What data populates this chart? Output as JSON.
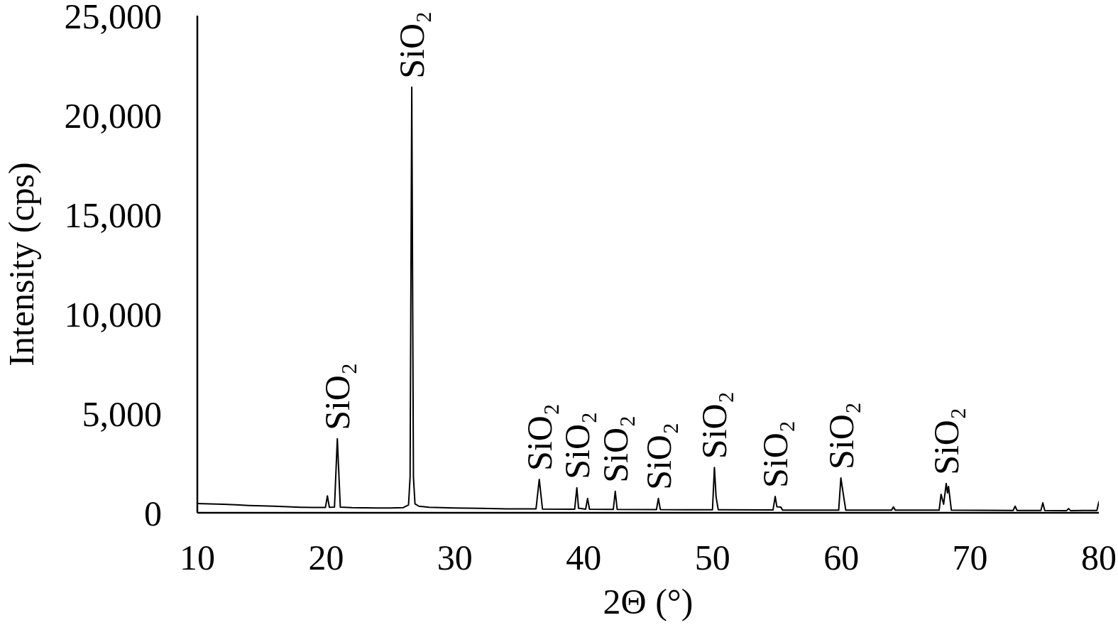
{
  "chart_data": {
    "type": "line",
    "xlabel": "2Θ (°)",
    "ylabel": "Intensity (cps)",
    "x": [
      10,
      11,
      12,
      13,
      14,
      15,
      16,
      17,
      18,
      19,
      19.95,
      20.1,
      20.25,
      20.65,
      20.87,
      21.1,
      22,
      23,
      24,
      25,
      26,
      26.4,
      26.52,
      26.65,
      26.78,
      26.9,
      27.2,
      28,
      30,
      32,
      34,
      36.3,
      36.55,
      36.8,
      39.3,
      39.47,
      39.6,
      40.15,
      40.3,
      40.45,
      42.3,
      42.45,
      42.6,
      45.65,
      45.8,
      45.95,
      48,
      50,
      50.15,
      50.28,
      50.45,
      54.7,
      54.87,
      55,
      55.3,
      55.45,
      59.8,
      59.97,
      60.15,
      60.35,
      63.9,
      64.05,
      64.2,
      67.6,
      67.75,
      67.95,
      68.15,
      68.25,
      68.33,
      68.55,
      73.35,
      73.5,
      73.65,
      75.5,
      75.65,
      75.8,
      77.5,
      77.65,
      77.8,
      79.85,
      80
    ],
    "series": [
      {
        "color": "#000000",
        "values": [
          460,
          450,
          430,
          400,
          370,
          350,
          330,
          300,
          280,
          270,
          270,
          850,
          280,
          290,
          3720,
          290,
          260,
          250,
          240,
          240,
          260,
          400,
          1800,
          21400,
          1800,
          450,
          330,
          280,
          240,
          220,
          200,
          200,
          1680,
          190,
          180,
          1260,
          230,
          180,
          720,
          180,
          170,
          1080,
          170,
          160,
          720,
          160,
          150,
          150,
          2280,
          800,
          150,
          140,
          820,
          300,
          290,
          130,
          130,
          1750,
          970,
          130,
          130,
          290,
          130,
          130,
          930,
          430,
          1470,
          1000,
          1320,
          130,
          120,
          330,
          120,
          120,
          500,
          120,
          110,
          210,
          110,
          120,
          550
        ]
      }
    ],
    "xlim": [
      10,
      80
    ],
    "xticks": [
      10,
      20,
      30,
      40,
      50,
      60,
      70,
      80
    ],
    "ylim": [
      0,
      25000
    ],
    "yticks": [
      0,
      {
        "value": 5000,
        "label": "5,000"
      },
      {
        "value": 10000,
        "label": "10,000"
      },
      {
        "value": 15000,
        "label": "15,000"
      },
      {
        "value": 20000,
        "label": "20,000"
      },
      {
        "value": 25000,
        "label": "25,000"
      }
    ],
    "marker": "none",
    "line_style": "solid",
    "annotations": [
      {
        "text": "SiO₂",
        "x": 20.87,
        "y": 3720
      },
      {
        "text": "SiO₂",
        "x": 26.65,
        "y": 21400
      },
      {
        "text": "SiO₂",
        "x": 36.55,
        "y": 1680
      },
      {
        "text": "SiO₂",
        "x": 39.47,
        "y": 1260
      },
      {
        "text": "SiO₂",
        "x": 42.45,
        "y": 1080
      },
      {
        "text": "SiO₂",
        "x": 45.8,
        "y": 720
      },
      {
        "text": "SiO₂",
        "x": 50.15,
        "y": 2280
      },
      {
        "text": "SiO₂",
        "x": 54.87,
        "y": 820
      },
      {
        "text": "SiO₂",
        "x": 59.97,
        "y": 1750
      },
      {
        "text": "SiO₂",
        "x": 68.15,
        "y": 1470
      }
    ]
  }
}
